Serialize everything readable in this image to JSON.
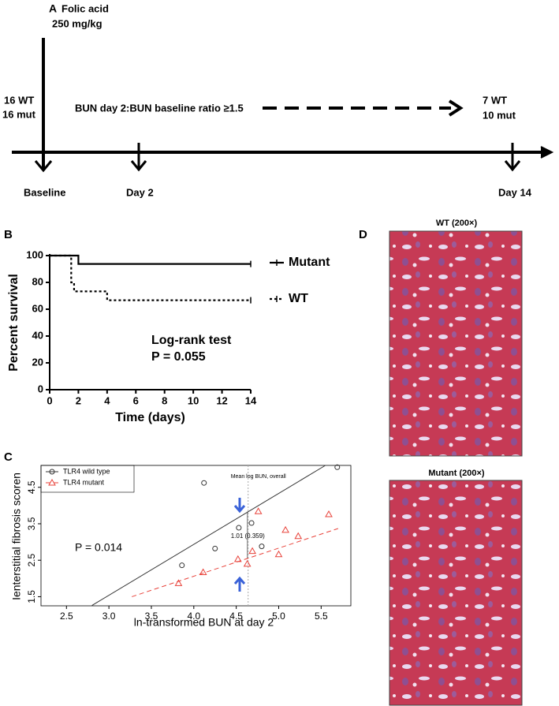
{
  "panel_a": {
    "label": "A",
    "drug": "Folic acid",
    "dose": "250 mg/kg",
    "start_groups": [
      "16 WT",
      "16 mut"
    ],
    "criterion": "BUN day 2:BUN baseline ratio ≥1.5",
    "end_groups": [
      "7 WT",
      "10 mut"
    ],
    "timepoints": [
      "Baseline",
      "Day 2",
      "Day 14"
    ]
  },
  "chart_data": [
    {
      "label": "B",
      "type": "line",
      "step": true,
      "xlabel": "Time (days)",
      "ylabel": "Percent survival",
      "xlim": [
        0,
        14
      ],
      "ylim": [
        0,
        100
      ],
      "xticks": [
        0,
        2,
        4,
        6,
        8,
        10,
        12,
        14
      ],
      "yticks": [
        0,
        20,
        40,
        60,
        80,
        100
      ],
      "annotations": [
        "Log-rank test",
        "P = 0.055"
      ],
      "series": [
        {
          "name": "Mutant",
          "color": "#000000",
          "dash": "solid",
          "x": [
            0,
            2,
            14
          ],
          "values": [
            100,
            93.75,
            93.75
          ]
        },
        {
          "name": "WT",
          "color": "#000000",
          "dash": "dotted",
          "x": [
            0,
            1.5,
            1.7,
            4,
            14
          ],
          "values": [
            100,
            80,
            73.3,
            66.7,
            66.7
          ]
        }
      ]
    },
    {
      "label": "C",
      "type": "scatter",
      "xlabel": "ln-transformed BUN at day 2",
      "ylabel": "Ienterstitial fibrosis scoren",
      "xlim": [
        2.2,
        5.85
      ],
      "ylim": [
        1.25,
        5.1
      ],
      "xticks": [
        2.5,
        {
          "value": 3,
          "label": "3.0"
        },
        3.5,
        {
          "value": 4,
          "label": "4.0"
        },
        4.5,
        {
          "value": 5,
          "label": "5.0"
        },
        5.5
      ],
      "yticks": [
        1.5,
        2.5,
        3.5,
        4.5
      ],
      "p_label": "P = 0.014",
      "mean_label": "Mean log BUN, overall",
      "mean_x": 4.64,
      "effect_label": "1.01 (0.359)",
      "series": [
        {
          "name": "TLR4 wild type",
          "color": "#333333",
          "marker": "circle",
          "x": [
            3.86,
            4.12,
            4.25,
            4.53,
            4.68,
            4.8,
            5.69
          ],
          "values": [
            2.36,
            4.62,
            2.82,
            3.39,
            3.52,
            2.88,
            5.05
          ],
          "fit": {
            "dash": "solid",
            "x": [
              2.8,
              5.55
            ],
            "values": [
              1.26,
              5.1
            ]
          }
        },
        {
          "name": "TLR4 mutant",
          "color": "#e8423a",
          "marker": "triangle",
          "x": [
            3.82,
            4.11,
            4.52,
            4.63,
            4.69,
            4.76,
            5.08,
            5,
            5.23,
            5.59
          ],
          "values": [
            1.87,
            2.17,
            2.53,
            2.4,
            2.75,
            3.84,
            3.33,
            2.66,
            3.16,
            3.76
          ],
          "fit": {
            "dash": "dashed",
            "x": [
              3.27,
              5.7
            ],
            "values": [
              1.5,
              3.37
            ]
          }
        }
      ]
    }
  ],
  "panel_d": {
    "label": "D",
    "images": [
      {
        "title": "WT (200×)"
      },
      {
        "title": "Mutant (200×)"
      }
    ]
  }
}
